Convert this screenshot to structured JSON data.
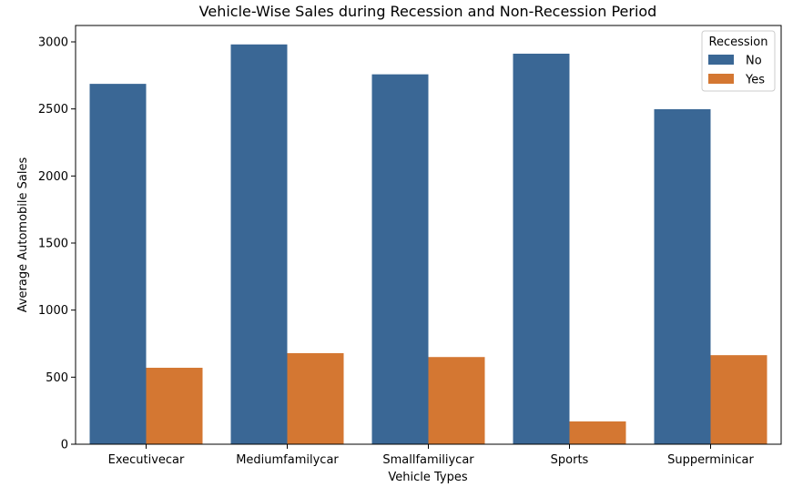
{
  "chart_data": {
    "type": "bar",
    "title": "Vehicle-Wise Sales during Recession and Non-Recession Period",
    "xlabel": "Vehicle Types",
    "ylabel": "Average Automobile Sales",
    "categories": [
      "Executivecar",
      "Mediumfamilycar",
      "Smallfamiliycar",
      "Sports",
      "Supperminicar"
    ],
    "series": [
      {
        "name": "No",
        "color": "#3a6795",
        "values": [
          2687,
          2981,
          2758,
          2912,
          2498
        ]
      },
      {
        "name": "Yes",
        "color": "#d47732",
        "values": [
          570,
          679,
          650,
          170,
          664
        ]
      }
    ],
    "ylim": [
      0,
      3000
    ],
    "yticks": [
      0,
      500,
      1000,
      1500,
      2000,
      2500,
      3000
    ],
    "grid": false,
    "legend": {
      "title": "Recession",
      "position": "top-right"
    }
  }
}
